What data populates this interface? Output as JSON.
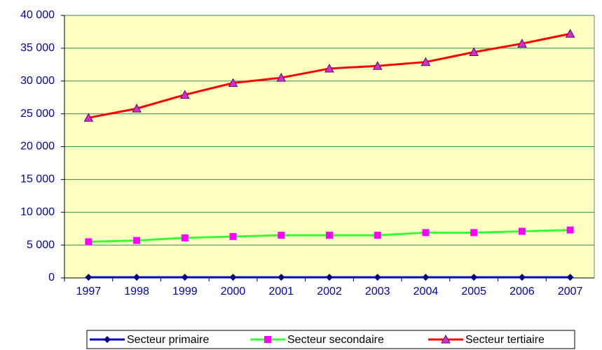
{
  "chart_data": {
    "type": "line",
    "categories": [
      "1997",
      "1998",
      "1999",
      "2000",
      "2001",
      "2002",
      "2003",
      "2004",
      "2005",
      "2006",
      "2007"
    ],
    "series": [
      {
        "name": "Secteur primaire",
        "color": "#0000cc",
        "marker": "diamond",
        "values": [
          100,
          100,
          100,
          100,
          100,
          100,
          100,
          100,
          100,
          100,
          100
        ]
      },
      {
        "name": "Secteur secondaire",
        "color": "#33ff33",
        "marker": "square",
        "values": [
          5500,
          5700,
          6100,
          6300,
          6500,
          6500,
          6500,
          6900,
          6900,
          7100,
          7300
        ]
      },
      {
        "name": "Secteur tertiaire",
        "color": "#ff0000",
        "marker": "triangle",
        "values": [
          24400,
          25800,
          27900,
          29700,
          30500,
          31900,
          32300,
          32900,
          34400,
          35700,
          37200
        ]
      }
    ],
    "ylim": [
      0,
      40000
    ],
    "yticks": [
      {
        "value": 0,
        "label": "0"
      },
      {
        "value": 5000,
        "label": "5 000"
      },
      {
        "value": 10000,
        "label": "10 000"
      },
      {
        "value": 15000,
        "label": "15 000"
      },
      {
        "value": 20000,
        "label": "20 000"
      },
      {
        "value": 25000,
        "label": "25 000"
      },
      {
        "value": 30000,
        "label": "30 000"
      },
      {
        "value": 35000,
        "label": "35 000"
      },
      {
        "value": 40000,
        "label": "40 000"
      }
    ],
    "grid": true,
    "legend": "bottom"
  }
}
